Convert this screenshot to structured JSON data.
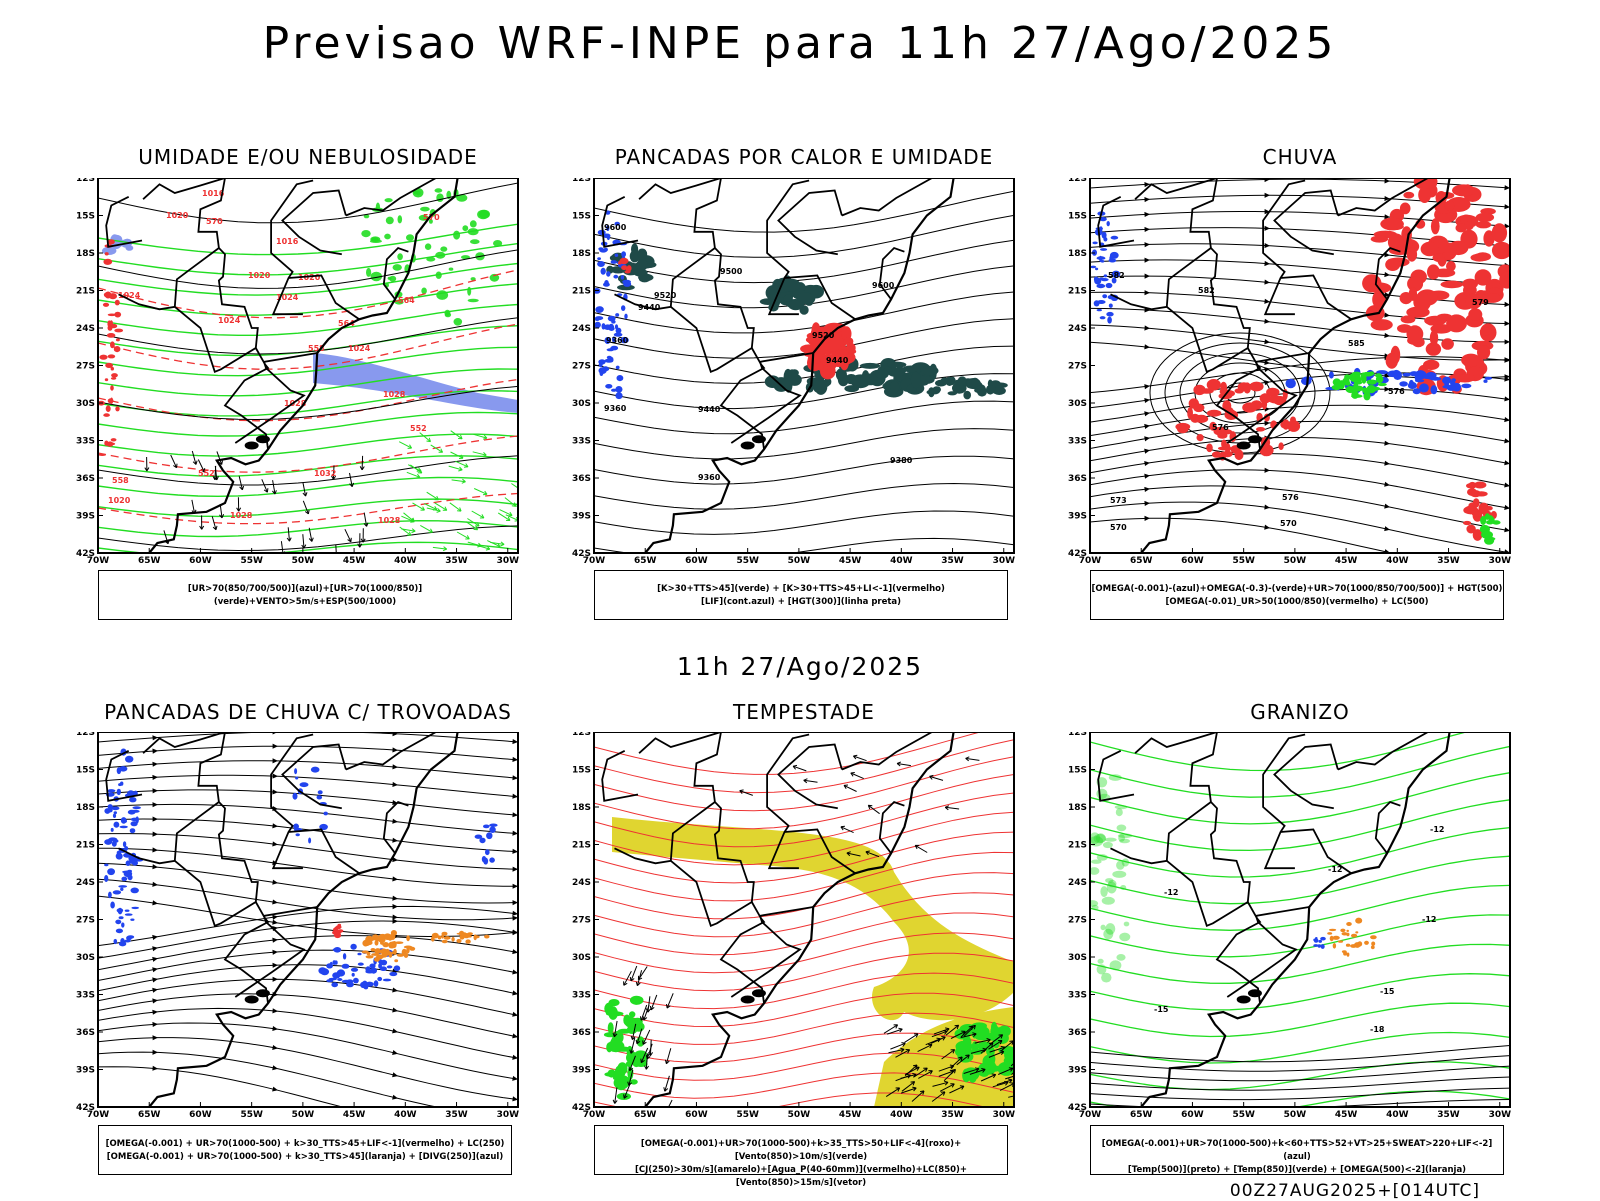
{
  "page": {
    "title": "Previsao WRF-INPE  para 11h 27/Ago/2025",
    "mid_date": "11h 27/Ago/2025",
    "footer": "00Z27AUG2025+[014UTC]"
  },
  "axes": {
    "lat_labels": [
      "12S",
      "15S",
      "18S",
      "21S",
      "24S",
      "27S",
      "30S",
      "33S",
      "36S",
      "39S",
      "42S"
    ],
    "lon_labels": [
      "70W",
      "65W",
      "60W",
      "55W",
      "50W",
      "45W",
      "40W",
      "35W",
      "30W"
    ]
  },
  "colors": {
    "green": "#22dd22",
    "blue": "#2244ee",
    "lightblue": "#8899ee",
    "red": "#ee3333",
    "darkteal": "#1f4a48",
    "yellow": "#e0d530",
    "orange": "#ee8822"
  },
  "panels": [
    {
      "title": "UMIDADE E/OU NEBULOSIDADE",
      "legend": [
        "[UR>70(850/700/500)](azul)+[UR>70(1000/850)](verde)+VENTO>5m/s+ESP(500/1000)"
      ],
      "labels": [
        "1016",
        "1020",
        "1016",
        "1020",
        "1020",
        "1024",
        "1024",
        "1024",
        "1024",
        "1028",
        "1028",
        "1032",
        "1028",
        "1028",
        "1020",
        "570",
        "570",
        "564",
        "564",
        "558",
        "552",
        "552",
        "558"
      ]
    },
    {
      "title": "PANCADAS POR CALOR E UMIDADE",
      "legend": [
        "[K>30+TTS>45](verde) + [K>30+TTS>45+LI<-1](vermelho)",
        "[LIF](cont.azul) + [HGT(300)](linha preta)"
      ],
      "labels": [
        "9600",
        "9500",
        "9520",
        "9600",
        "9440",
        "9440",
        "9520",
        "9360",
        "9440",
        "9360",
        "9380",
        "9360"
      ]
    },
    {
      "title": "CHUVA",
      "legend": [
        "[OMEGA(-0.001)-(azul)+OMEGA(-0.3)-(verde)+UR>70(1000/850/700/500)] + HGT(500)",
        "[OMEGA(-0.01)_UR>50(1000/850)(vermelho) + LC(500)"
      ],
      "labels": [
        "582",
        "582",
        "585",
        "579",
        "576",
        "576",
        "573",
        "576",
        "570",
        "570"
      ]
    },
    {
      "title": "PANCADAS DE CHUVA C/ TROVOADAS",
      "legend": [
        "[OMEGA(-0.001) + UR>70(1000-500) + k>30_TTS>45+LIF<-1](vermelho) + LC(250)",
        "[OMEGA(-0.001) + UR>70(1000-500) + k>30_TTS>45](laranja) + [DIVG(250)](azul)"
      ],
      "labels": []
    },
    {
      "title": "TEMPESTADE",
      "legend": [
        "[OMEGA(-0.001)+UR>70(1000-500)+k>35_TTS>50+LIF<-4](roxo)+[Vento(850)>10m/s](verde)",
        "[CJ(250)>30m/s](amarelo)+[Agua_P(40-60mm)](vermelho)+LC(850)+[Vento(850)>15m/s](vetor)"
      ],
      "labels": []
    },
    {
      "title": "GRANIZO",
      "legend": [
        "[OMEGA(-0.001)+UR>70(1000-500)+k<60+TTS>52+VT>25+SWEAT>220+LIF<-2](azul)",
        "[Temp(500)](preto) + [Temp(850)](verde) + [OMEGA(500)<-2](laranja)"
      ],
      "labels": [
        "-12",
        "-12",
        "-12",
        "-15",
        "-15",
        "-18",
        "-12"
      ]
    }
  ]
}
